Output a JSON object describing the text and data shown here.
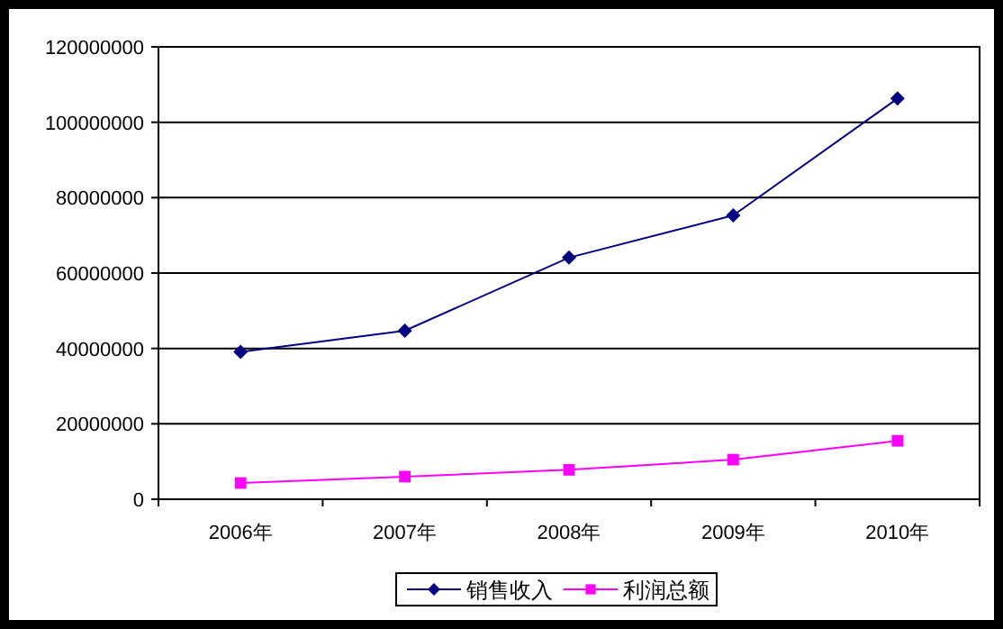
{
  "chart_data": {
    "type": "line",
    "categories": [
      "2006年",
      "2007年",
      "2008年",
      "2009年",
      "2010年"
    ],
    "series": [
      {
        "name": "销售收入",
        "color": "#000080",
        "marker": "diamond",
        "values": [
          39100000,
          44700000,
          64100000,
          75300000,
          106300000
        ]
      },
      {
        "name": "利润总额",
        "color": "#ff00ff",
        "marker": "square",
        "values": [
          4300000,
          6000000,
          7800000,
          10500000,
          15500000
        ]
      }
    ],
    "ylim": [
      0,
      120000000
    ],
    "yticks": [
      0,
      20000000,
      40000000,
      60000000,
      80000000,
      100000000,
      120000000
    ],
    "grid": "y",
    "legend": "bottom",
    "line_style": "solid"
  }
}
